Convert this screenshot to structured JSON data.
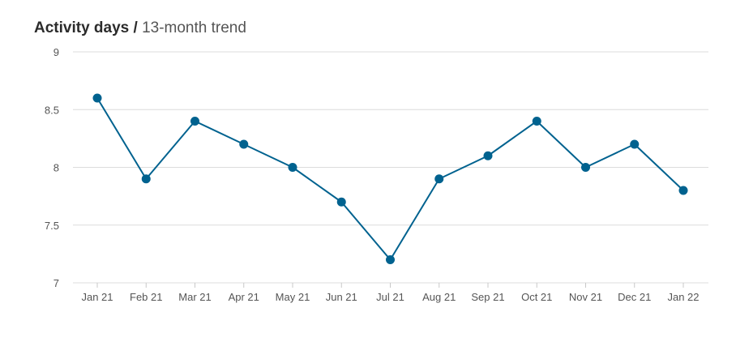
{
  "header": {
    "title": "Activity days",
    "separator": "/",
    "subtitle": "13-month trend"
  },
  "colors": {
    "series": "#00628f",
    "grid": "#dcdcdc",
    "axis_text": "#555555"
  },
  "chart_data": {
    "type": "line",
    "title": "Activity days",
    "subtitle": "13-month trend",
    "xlabel": "",
    "ylabel": "",
    "categories": [
      "Jan 21",
      "Feb 21",
      "Mar 21",
      "Apr 21",
      "May 21",
      "Jun 21",
      "Jul 21",
      "Aug 21",
      "Sep 21",
      "Oct 21",
      "Nov 21",
      "Dec 21",
      "Jan 22"
    ],
    "values": [
      8.6,
      7.9,
      8.4,
      8.2,
      8.0,
      7.7,
      7.2,
      7.9,
      8.1,
      8.4,
      8.0,
      8.2,
      7.8
    ],
    "ylim": [
      7,
      9
    ],
    "yticks": [
      7,
      7.5,
      8,
      8.5,
      9
    ],
    "ytick_labels": [
      "7",
      "7.5",
      "8",
      "8.5",
      "9"
    ],
    "grid": true,
    "legend": "none"
  }
}
